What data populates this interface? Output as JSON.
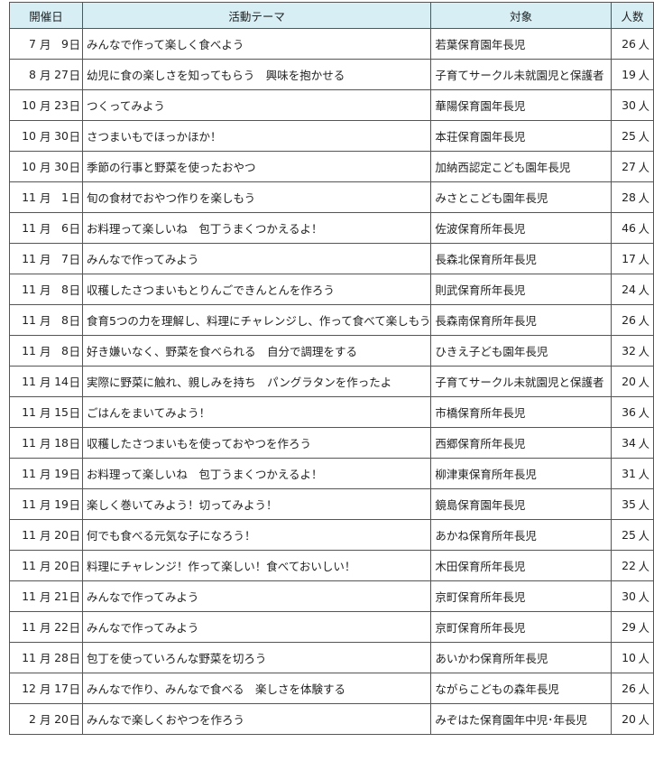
{
  "table": {
    "headers": {
      "date": "開催日",
      "theme": "活動テーマ",
      "target": "対象",
      "count": "人数"
    },
    "units": {
      "month": "月",
      "day": "日",
      "person": "人"
    },
    "rows": [
      {
        "month": "7",
        "day": "9",
        "theme": "みんなで作って楽しく食べよう",
        "target": "若葉保育園年長児",
        "count": "26"
      },
      {
        "month": "8",
        "day": "27",
        "theme": "幼児に食の楽しさを知ってもらう　興味を抱かせる",
        "target": "子育てサークル未就園児と保護者",
        "count": "19"
      },
      {
        "month": "10",
        "day": "23",
        "theme": "つくってみよう",
        "target": "華陽保育園年長児",
        "count": "30"
      },
      {
        "month": "10",
        "day": "30",
        "theme": "さつまいもでほっかほか！",
        "target": "本荘保育園年長児",
        "count": "25"
      },
      {
        "month": "10",
        "day": "30",
        "theme": "季節の行事と野菜を使ったおやつ",
        "target": "加納西認定こども園年長児",
        "count": "27"
      },
      {
        "month": "11",
        "day": "1",
        "theme": "旬の食材でおやつ作りを楽しもう",
        "target": "みさとこども園年長児",
        "count": "28"
      },
      {
        "month": "11",
        "day": "6",
        "theme": "お料理って楽しいね　包丁うまくつかえるよ！",
        "target": "佐波保育所年長児",
        "count": "46"
      },
      {
        "month": "11",
        "day": "7",
        "theme": "みんなで作ってみよう",
        "target": "長森北保育所年長児",
        "count": "17"
      },
      {
        "month": "11",
        "day": "8",
        "theme": "収穫したさつまいもとりんごできんとんを作ろう",
        "target": "則武保育所年長児",
        "count": "24"
      },
      {
        "month": "11",
        "day": "8",
        "theme": "食育5つの力を理解し、料理にチャレンジし、作って食べて楽しもう",
        "target": "長森南保育所年長児",
        "count": "26"
      },
      {
        "month": "11",
        "day": "8",
        "theme": "好き嫌いなく、野菜を食べられる　自分で調理をする",
        "target": "ひきえ子ども園年長児",
        "count": "32"
      },
      {
        "month": "11",
        "day": "14",
        "theme": "実際に野菜に触れ、親しみを持ち　パングラタンを作ったよ",
        "target": "子育てサークル未就園児と保護者",
        "count": "20"
      },
      {
        "month": "11",
        "day": "15",
        "theme": "ごはんをまいてみよう！",
        "target": "市橋保育所年長児",
        "count": "36"
      },
      {
        "month": "11",
        "day": "18",
        "theme": "収穫したさつまいもを使っておやつを作ろう",
        "target": "西郷保育所年長児",
        "count": "34"
      },
      {
        "month": "11",
        "day": "19",
        "theme": "お料理って楽しいね　包丁うまくつかえるよ！",
        "target": "柳津東保育所年長児",
        "count": "31"
      },
      {
        "month": "11",
        "day": "19",
        "theme": "楽しく巻いてみよう！切ってみよう！",
        "target": "鏡島保育園年長児",
        "count": "35"
      },
      {
        "month": "11",
        "day": "20",
        "theme": "何でも食べる元気な子になろう！",
        "target": "あかね保育所年長児",
        "count": "25"
      },
      {
        "month": "11",
        "day": "20",
        "theme": "料理にチャレンジ！作って楽しい！食べておいしい！",
        "target": "木田保育所年長児",
        "count": "22"
      },
      {
        "month": "11",
        "day": "21",
        "theme": "みんなで作ってみよう",
        "target": "京町保育所年長児",
        "count": "30"
      },
      {
        "month": "11",
        "day": "22",
        "theme": "みんなで作ってみよう",
        "target": "京町保育所年長児",
        "count": "29"
      },
      {
        "month": "11",
        "day": "28",
        "theme": "包丁を使っていろんな野菜を切ろう",
        "target": "あいかわ保育所年長児",
        "count": "10"
      },
      {
        "month": "12",
        "day": "17",
        "theme": "みんなで作り、みんなで食べる　楽しさを体験する",
        "target": "ながらこどもの森年長児",
        "count": "26"
      },
      {
        "month": "2",
        "day": "20",
        "theme": "みんなで楽しくおやつを作ろう",
        "target": "みぞはた保育園年中児･年長児",
        "count": "20"
      }
    ]
  }
}
